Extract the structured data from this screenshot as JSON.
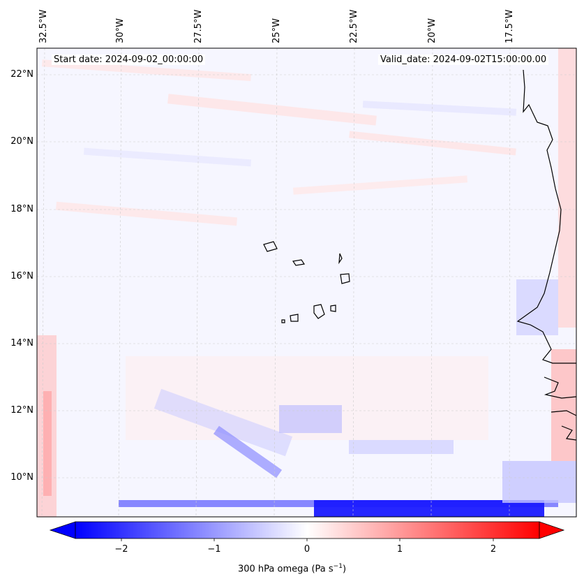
{
  "map": {
    "lon_ticks": [
      {
        "label": "32.5°W"
      },
      {
        "label": "30°W"
      },
      {
        "label": "27.5°W"
      },
      {
        "label": "25°W"
      },
      {
        "label": "22.5°W"
      },
      {
        "label": "20°W"
      },
      {
        "label": "17.5°W"
      }
    ],
    "lat_ticks": [
      {
        "label": "22°N"
      },
      {
        "label": "20°N"
      },
      {
        "label": "18°N"
      },
      {
        "label": "16°N"
      },
      {
        "label": "14°N"
      },
      {
        "label": "12°N"
      },
      {
        "label": "10°N"
      }
    ],
    "start_date": "Start date: 2024-09-02_00:00:00",
    "valid_date": "Valid_date: 2024-09-02T15:00:00.00"
  },
  "colorbar": {
    "label_prefix": "300 hPa omega (Pa s",
    "label_exp": "−1",
    "label_suffix": ")",
    "range": [
      -2.6,
      2.6
    ],
    "ticks": [
      "−2",
      "−1",
      "0",
      "1",
      "2"
    ],
    "cmap": "bwr",
    "min_color": "#0000ff",
    "mid_color": "#ffffff",
    "max_color": "#ff0000"
  }
}
